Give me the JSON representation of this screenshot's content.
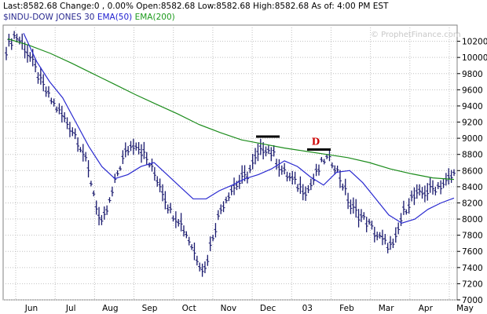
{
  "header": {
    "quote_line": "Last:8582.68  Change:0 , 0.00%  Open:8582.68  Low:8582.68  High:8582.68   As of: 4:00 PM EST",
    "symbol": "$INDU-DOW JONES 30",
    "ema50_label": "EMA(50)",
    "ema200_label": "EMA(200)"
  },
  "watermark": "© ProphetFinance.com",
  "colors": {
    "bars": "#1a1a6e",
    "ema50": "#2a2ad0",
    "ema200": "#1c8c1c",
    "annotation": "#cc0000",
    "marker": "#000000",
    "grid": "#c0c0c0"
  },
  "chart_data": {
    "type": "ohlc",
    "title": "$INDU-DOW JONES 30",
    "ylim": [
      7000,
      10400
    ],
    "yticks": [
      7000,
      7200,
      7400,
      7600,
      7800,
      8000,
      8200,
      8400,
      8600,
      8800,
      9000,
      9200,
      9400,
      9600,
      9800,
      10000,
      10200
    ],
    "ytick_labels": [
      "7000",
      "7200",
      "7400",
      "7600",
      "7800",
      "8000",
      "8200",
      "8400",
      "8600",
      "8800",
      "9000",
      "9200",
      "9400",
      "9600",
      "9800",
      "10000",
      "10200"
    ],
    "xtick_labels": [
      "Jun",
      "Jul",
      "Aug",
      "Sep",
      "Oct",
      "Nov",
      "Dec",
      "03",
      "Feb",
      "Mar",
      "Apr",
      "May"
    ],
    "grid": true,
    "series": [
      {
        "name": "$INDU-DOW JONES 30",
        "kind": "price_bars",
        "values": [
          10100,
          10280,
          10150,
          9950,
          9700,
          9500,
          9350,
          9200,
          9050,
          8800,
          8400,
          7900,
          8200,
          8600,
          8850,
          8950,
          8800,
          8600,
          8400,
          8100,
          8000,
          7800,
          7550,
          7350,
          7800,
          8150,
          8350,
          8450,
          8550,
          8750,
          8900,
          8800,
          8600,
          8500,
          8400,
          8350,
          8550,
          8750,
          8700,
          8450,
          8150,
          8050,
          7950,
          7800,
          7700,
          7650,
          8050,
          8250,
          8300,
          8350,
          8400,
          8450,
          8550
        ]
      },
      {
        "name": "EMA(50)",
        "kind": "line",
        "values": [
          10300,
          9950,
          9700,
          9500,
          9200,
          8900,
          8650,
          8500,
          8550,
          8650,
          8700,
          8550,
          8400,
          8250,
          8250,
          8350,
          8420,
          8500,
          8550,
          8620,
          8720,
          8650,
          8520,
          8420,
          8580,
          8600,
          8450,
          8250,
          8050,
          7950,
          8000,
          8120,
          8200,
          8260
        ]
      },
      {
        "name": "EMA(200)",
        "kind": "line",
        "values": [
          10230,
          10150,
          10050,
          9930,
          9800,
          9670,
          9540,
          9420,
          9300,
          9170,
          9070,
          8980,
          8930,
          8880,
          8840,
          8800,
          8760,
          8700,
          8620,
          8560,
          8510,
          8490
        ]
      }
    ],
    "annotations": [
      {
        "text": "D",
        "value": 8920
      }
    ],
    "resistance_levels": [
      9020,
      8860
    ]
  }
}
